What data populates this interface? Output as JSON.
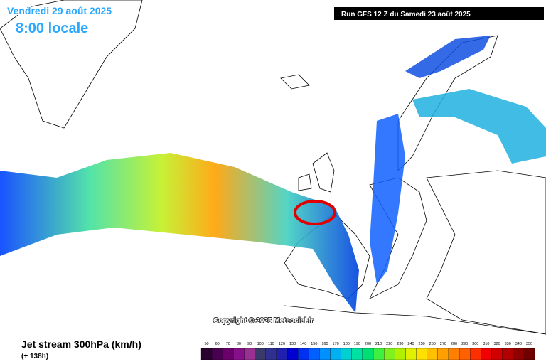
{
  "header": {
    "date": "Vendredi 29 août 2025",
    "time": "8:00 locale",
    "run": "Run GFS 12 Z du Samedi 23 août 2025"
  },
  "copyright": "Copyright © 2025 Meteociel.fr",
  "legend": {
    "title": "Jet stream 300hPa (km/h)",
    "lead": "(+ 138h)",
    "scale": [
      50,
      60,
      70,
      80,
      90,
      100,
      110,
      120,
      130,
      140,
      150,
      160,
      170,
      180,
      190,
      200,
      210,
      220,
      230,
      240,
      250,
      260,
      270,
      280,
      290,
      300,
      310,
      320,
      330,
      340,
      350
    ],
    "colors": [
      "#2a0030",
      "#4a0050",
      "#6a006a",
      "#86108a",
      "#9a3090",
      "#3a3a6a",
      "#303090",
      "#2020b0",
      "#0000d0",
      "#0030f0",
      "#0060ff",
      "#0090ff",
      "#00b0f0",
      "#00d0d0",
      "#00e0a0",
      "#00e070",
      "#40f040",
      "#80f020",
      "#b0f000",
      "#e0f000",
      "#ffe000",
      "#ffc000",
      "#ffa000",
      "#ff8000",
      "#ff6000",
      "#ff3000",
      "#f00000",
      "#d00000",
      "#b00000",
      "#900000",
      "#700000"
    ]
  }
}
